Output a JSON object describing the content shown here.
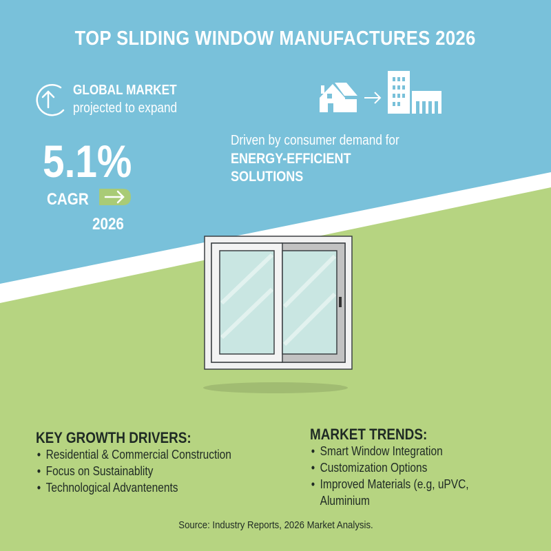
{
  "title": "TOP SLIDING WINDOW MANUFACTURES 2026",
  "global_market": {
    "icon": "arrow-up-circle-icon",
    "title": "GLOBAL MARKET",
    "subtitle": "projected to expand"
  },
  "cagr": {
    "value": "5.1%",
    "label": "CAGR",
    "year": "2026",
    "arrow_icon": "arrow-right-tag-icon"
  },
  "driver_statement": {
    "icons": [
      "house-icon",
      "arrow-right-icon",
      "office-building-icon",
      "warehouse-icon"
    ],
    "line1": "Driven by consumer demand for",
    "line2": "ENERGY-EFFICIENT",
    "line3": "SOLUTIONS"
  },
  "illustration": "sliding-window-icon",
  "key_growth_drivers": {
    "heading": "KEY GROWTH DRIVERS:",
    "items": [
      "Residential & Commercial Construction",
      "Focus on Sustainablity",
      "Technological Advantenents"
    ]
  },
  "market_trends": {
    "heading": "MARKET TRENDS:",
    "items": [
      "Smart Window Integration",
      "Customization Options",
      "Improved Materials (e.g, uPVC,",
      "Aluminium"
    ]
  },
  "source": "Source: Industry Reports, 2026 Market Analysis.",
  "colors": {
    "sky_blue": "#79c1da",
    "green": "#b6d481",
    "tag_green": "#a9cb76",
    "text_dark": "#1f2a24",
    "glass": "#c9e6e2"
  }
}
